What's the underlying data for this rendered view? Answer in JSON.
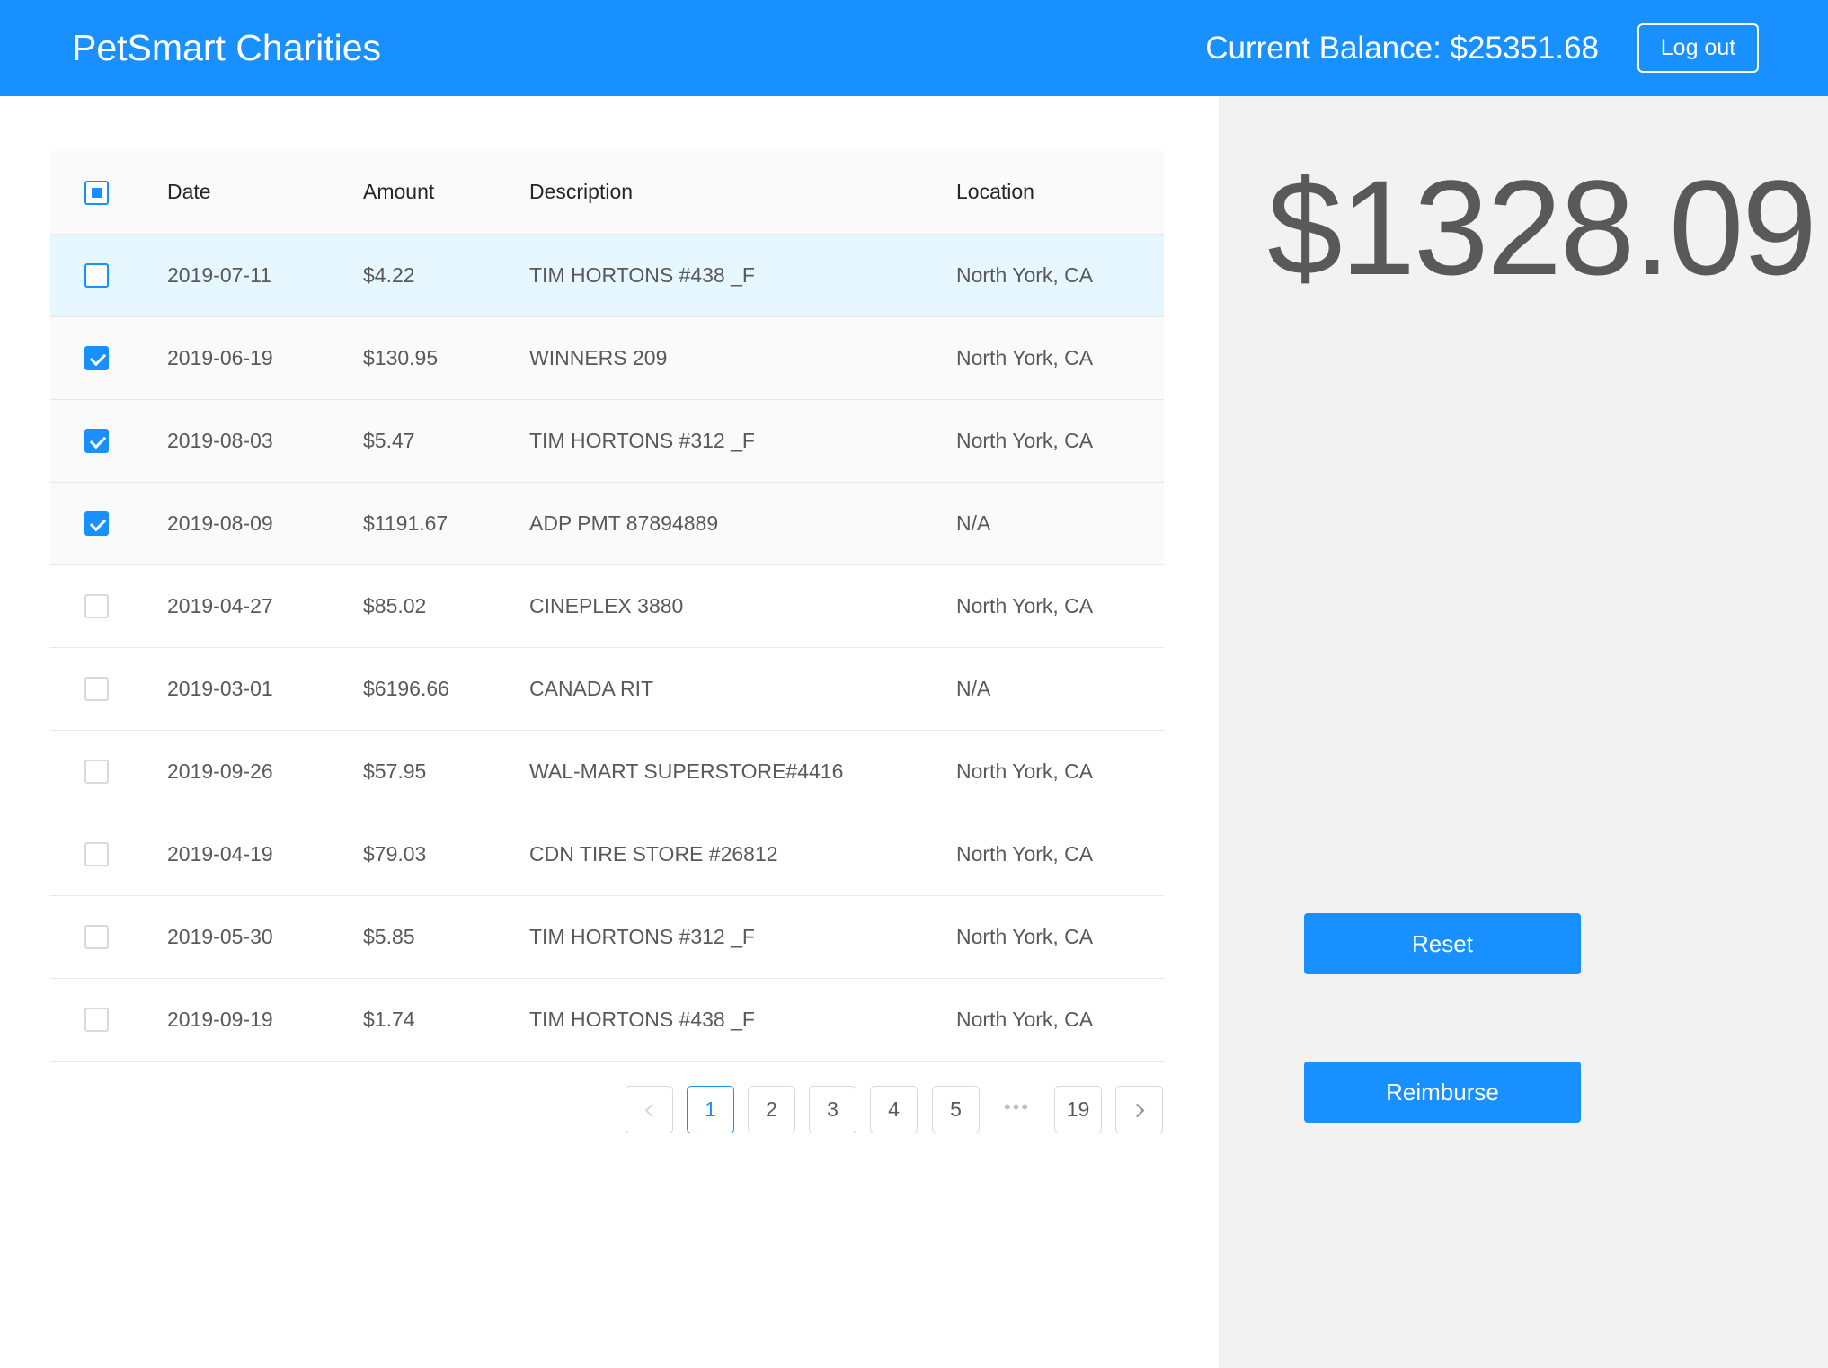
{
  "header": {
    "brand": "PetSmart Charities",
    "balance": "Current Balance: $25351.68",
    "logout_label": "Log out"
  },
  "table": {
    "columns": [
      "Date",
      "Amount",
      "Description",
      "Location"
    ],
    "rows": [
      {
        "date": "2019-07-11",
        "amount": "$4.22",
        "description": "TIM HORTONS #438 _F",
        "location": "North York, CA",
        "checked": false
      },
      {
        "date": "2019-06-19",
        "amount": "$130.95",
        "description": "WINNERS 209",
        "location": "North York, CA",
        "checked": true
      },
      {
        "date": "2019-08-03",
        "amount": "$5.47",
        "description": "TIM HORTONS #312 _F",
        "location": "North York, CA",
        "checked": true
      },
      {
        "date": "2019-08-09",
        "amount": "$1191.67",
        "description": "ADP PMT 87894889",
        "location": "N/A",
        "checked": true
      },
      {
        "date": "2019-04-27",
        "amount": "$85.02",
        "description": "CINEPLEX 3880",
        "location": "North York, CA",
        "checked": false
      },
      {
        "date": "2019-03-01",
        "amount": "$6196.66",
        "description": "CANADA RIT",
        "location": "N/A",
        "checked": false
      },
      {
        "date": "2019-09-26",
        "amount": "$57.95",
        "description": "WAL-MART SUPERSTORE#4416",
        "location": "North York, CA",
        "checked": false
      },
      {
        "date": "2019-04-19",
        "amount": "$79.03",
        "description": "CDN TIRE STORE #26812",
        "location": "North York, CA",
        "checked": false
      },
      {
        "date": "2019-05-30",
        "amount": "$5.85",
        "description": "TIM HORTONS #312 _F",
        "location": "North York, CA",
        "checked": false
      },
      {
        "date": "2019-09-19",
        "amount": "$1.74",
        "description": "TIM HORTONS #438 _F",
        "location": "North York, CA",
        "checked": false
      }
    ]
  },
  "pagination": {
    "pages": [
      "1",
      "2",
      "3",
      "4",
      "5"
    ],
    "ellipsis": "•••",
    "last_page": "19",
    "current": "1"
  },
  "side": {
    "selected_total": "$1328.09",
    "reset_label": "Reset",
    "reimburse_label": "Reimburse"
  },
  "colors": {
    "primary": "#1890ff",
    "row_hover": "#e6f7ff",
    "side_bg": "#f2f2f2"
  }
}
